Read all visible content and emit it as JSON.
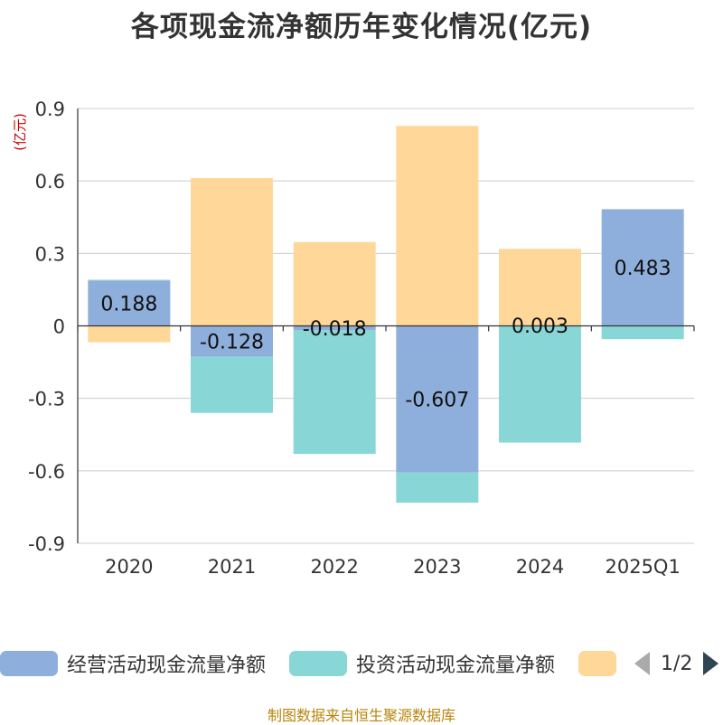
{
  "title": "各项现金流净额历年变化情况(亿元)",
  "footer": "制图数据来自恒生聚源数据库",
  "chart_data": {
    "type": "bar",
    "stacked": true,
    "categories": [
      "2020",
      "2021",
      "2022",
      "2023",
      "2024",
      "2025Q1"
    ],
    "ylabel": "(亿元)",
    "ylim": [
      -0.9,
      0.9
    ],
    "yticks": [
      0.9,
      0.6,
      0.3,
      0,
      -0.3,
      -0.6,
      -0.9
    ],
    "ytick_labels": [
      "0.9",
      "0.6",
      "0.3",
      "0",
      "-0.3",
      "-0.6",
      "-0.9"
    ],
    "grid": true,
    "series": [
      {
        "name": "经营活动现金流量净额",
        "color": "#8eaedb",
        "values": [
          0.188,
          -0.128,
          -0.018,
          -0.607,
          0.003,
          0.483
        ],
        "data_labels": [
          "0.188",
          "-0.128",
          "-0.018",
          "-0.607",
          "0.003",
          "0.483"
        ]
      },
      {
        "name": "投资活动现金流量净额",
        "color": "#89d6d6",
        "values": [
          0.003,
          -0.232,
          -0.512,
          -0.125,
          -0.483,
          -0.055
        ]
      },
      {
        "name": "",
        "color": "#ffd899",
        "values": [
          -0.068,
          0.612,
          0.347,
          0.828,
          0.316,
          0.0
        ]
      }
    ]
  },
  "legend": {
    "items": [
      {
        "label": "经营活动现金流量净额",
        "color": "#8eaedb"
      },
      {
        "label": "投资活动现金流量净额",
        "color": "#89d6d6"
      },
      {
        "label": "",
        "color": "#ffd899"
      }
    ],
    "page_text": "1/2"
  }
}
